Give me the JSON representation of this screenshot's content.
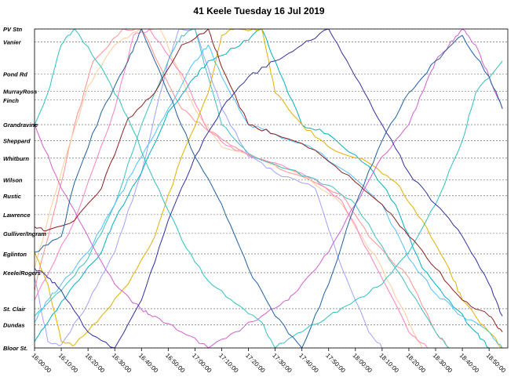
{
  "chart_data": {
    "type": "line",
    "title": "41 Keele  Tuesday 16 Jul 2019",
    "xlabel": "",
    "ylabel": "",
    "x_axis": {
      "min": "16:00:00",
      "max": "18:57:00",
      "ticks": [
        "16:00:00",
        "16:10:00",
        "16:20:00",
        "16:30:00",
        "16:40:00",
        "16:50:00",
        "17:00:00",
        "17:10:00",
        "17:20:00",
        "17:30:00",
        "17:40:00",
        "17:50:00",
        "18:00:00",
        "18:10:00",
        "18:20:00",
        "18:30:00",
        "18:40:00",
        "18:50:00"
      ]
    },
    "y_axis": {
      "stops": [
        {
          "name": "PV Stn",
          "pos": 0.0
        },
        {
          "name": "Vanier",
          "pos": 0.041
        },
        {
          "name": "Pond Rd",
          "pos": 0.141
        },
        {
          "name": "MurrayRoss",
          "pos": 0.195
        },
        {
          "name": "Finch",
          "pos": 0.223
        },
        {
          "name": "Grandravine",
          "pos": 0.3
        },
        {
          "name": "Sheppard",
          "pos": 0.35
        },
        {
          "name": "Whitburn",
          "pos": 0.405
        },
        {
          "name": "Wilson",
          "pos": 0.473
        },
        {
          "name": "Rustic",
          "pos": 0.523
        },
        {
          "name": "Lawrence",
          "pos": 0.582
        },
        {
          "name": "Gulliver/Ingram",
          "pos": 0.641
        },
        {
          "name": "Eglinton",
          "pos": 0.705
        },
        {
          "name": "Keele/Rogers",
          "pos": 0.764
        },
        {
          "name": "St. Clair",
          "pos": 0.877
        },
        {
          "name": "Dundas",
          "pos": 0.927
        },
        {
          "name": "Bloor St.",
          "pos": 1.0
        }
      ]
    },
    "grid": true,
    "legend": "none",
    "series": [
      {
        "color": "#a0a0ff",
        "points": [
          [
            "16:00",
            0.78
          ],
          [
            "16:05",
            0.98
          ],
          [
            "16:10",
            0.99
          ],
          [
            "16:20",
            0.86
          ],
          [
            "16:30",
            0.7
          ],
          [
            "16:40",
            0.45
          ],
          [
            "16:50",
            0.1
          ],
          [
            "16:54",
            0.0
          ],
          [
            "17:00",
            0.0
          ],
          [
            "17:10",
            0.25
          ],
          [
            "17:20",
            0.4
          ],
          [
            "17:30",
            0.45
          ],
          [
            "17:45",
            0.5
          ],
          [
            "17:55",
            0.75
          ],
          [
            "18:05",
            0.95
          ],
          [
            "18:10",
            1.0
          ]
        ]
      },
      {
        "color": "#ff9090",
        "points": [
          [
            "16:00",
            0.82
          ],
          [
            "16:08",
            0.55
          ],
          [
            "16:15",
            0.3
          ],
          [
            "16:22",
            0.1
          ],
          [
            "16:33",
            0.0
          ],
          [
            "16:40",
            0.0
          ],
          [
            "16:55",
            0.25
          ],
          [
            "17:05",
            0.32
          ],
          [
            "17:15",
            0.37
          ],
          [
            "17:35",
            0.45
          ],
          [
            "17:55",
            0.52
          ],
          [
            "18:05",
            0.65
          ],
          [
            "18:20",
            0.78
          ],
          [
            "18:30",
            0.95
          ],
          [
            "18:35",
            1.0
          ]
        ]
      },
      {
        "color": "#ffcc99",
        "points": [
          [
            "16:00",
            0.75
          ],
          [
            "16:10",
            0.45
          ],
          [
            "16:20",
            0.18
          ],
          [
            "16:30",
            0.05
          ],
          [
            "16:40",
            0.0
          ],
          [
            "16:47",
            0.0
          ],
          [
            "17:00",
            0.25
          ],
          [
            "17:10",
            0.37
          ],
          [
            "17:25",
            0.41
          ],
          [
            "17:40",
            0.46
          ],
          [
            "17:55",
            0.55
          ],
          [
            "18:10",
            0.75
          ],
          [
            "18:20",
            0.92
          ],
          [
            "18:25",
            1.0
          ]
        ]
      },
      {
        "color": "#ff80c0",
        "points": [
          [
            "16:00",
            0.85
          ],
          [
            "16:15",
            0.6
          ],
          [
            "16:30",
            0.25
          ],
          [
            "16:37",
            0.02
          ],
          [
            "16:43",
            0.0
          ],
          [
            "16:55",
            0.14
          ],
          [
            "17:05",
            0.32
          ],
          [
            "17:15",
            0.38
          ],
          [
            "17:30",
            0.42
          ],
          [
            "17:45",
            0.47
          ],
          [
            "17:55",
            0.54
          ],
          [
            "18:05",
            0.7
          ],
          [
            "18:20",
            0.95
          ],
          [
            "18:27",
            1.0
          ]
        ]
      },
      {
        "color": "#40c0c0",
        "points": [
          [
            "16:00",
            0.9
          ],
          [
            "16:10",
            0.82
          ],
          [
            "16:20",
            0.72
          ],
          [
            "16:30",
            0.55
          ],
          [
            "16:40",
            0.3
          ],
          [
            "16:50",
            0.1
          ],
          [
            "16:55",
            0.02
          ],
          [
            "17:00",
            0.0
          ],
          [
            "17:10",
            0.3
          ],
          [
            "17:20",
            0.39
          ],
          [
            "17:35",
            0.44
          ],
          [
            "17:50",
            0.49
          ],
          [
            "18:00",
            0.55
          ],
          [
            "18:15",
            0.75
          ],
          [
            "18:30",
            0.95
          ],
          [
            "18:35",
            1.0
          ]
        ]
      },
      {
        "color": "#00b0c0",
        "points": [
          [
            "16:00",
            0.98
          ],
          [
            "16:05",
            0.92
          ],
          [
            "16:15",
            0.8
          ],
          [
            "16:25",
            0.7
          ],
          [
            "16:30",
            0.6
          ],
          [
            "16:40",
            0.45
          ],
          [
            "16:50",
            0.26
          ],
          [
            "17:00",
            0.15
          ],
          [
            "17:05",
            0.1
          ],
          [
            "17:15",
            0.06
          ],
          [
            "17:25",
            0.0
          ],
          [
            "17:30",
            0.1
          ],
          [
            "17:40",
            0.3
          ],
          [
            "17:50",
            0.33
          ],
          [
            "18:05",
            0.43
          ],
          [
            "18:15",
            0.55
          ],
          [
            "18:25",
            0.75
          ],
          [
            "18:35",
            0.85
          ],
          [
            "18:45",
            0.95
          ],
          [
            "18:50",
            1.0
          ]
        ]
      },
      {
        "color": "#e0b000",
        "points": [
          [
            "16:00",
            0.7
          ],
          [
            "16:05",
            0.8
          ],
          [
            "16:10",
            0.98
          ],
          [
            "16:15",
            0.99
          ],
          [
            "16:25",
            0.9
          ],
          [
            "16:35",
            0.8
          ],
          [
            "16:45",
            0.65
          ],
          [
            "16:55",
            0.4
          ],
          [
            "17:05",
            0.2
          ],
          [
            "17:10",
            0.02
          ],
          [
            "17:15",
            0.0
          ],
          [
            "17:25",
            0.0
          ],
          [
            "17:30",
            0.2
          ],
          [
            "17:40",
            0.3
          ],
          [
            "17:50",
            0.37
          ],
          [
            "18:05",
            0.42
          ],
          [
            "18:15",
            0.48
          ],
          [
            "18:25",
            0.6
          ],
          [
            "18:35",
            0.75
          ],
          [
            "18:40",
            0.85
          ],
          [
            "18:50",
            0.95
          ],
          [
            "18:55",
            1.0
          ]
        ]
      },
      {
        "color": "#50c0ff",
        "points": [
          [
            "16:00",
            0.92
          ],
          [
            "16:05",
            0.85
          ],
          [
            "16:10",
            0.8
          ],
          [
            "16:20",
            0.7
          ],
          [
            "16:30",
            0.55
          ],
          [
            "16:40",
            0.4
          ],
          [
            "16:50",
            0.25
          ],
          [
            "17:00",
            0.1
          ],
          [
            "17:05",
            0.05
          ],
          [
            "17:10",
            0.15
          ],
          [
            "17:20",
            0.3
          ],
          [
            "17:30",
            0.33
          ],
          [
            "17:45",
            0.38
          ],
          [
            "18:00",
            0.47
          ],
          [
            "18:10",
            0.55
          ],
          [
            "18:20",
            0.72
          ],
          [
            "18:30",
            0.83
          ],
          [
            "18:40",
            0.9
          ],
          [
            "18:50",
            0.95
          ],
          [
            "18:55",
            1.0
          ]
        ]
      },
      {
        "color": "#d060d0",
        "points": [
          [
            "16:00",
            0.3
          ],
          [
            "16:10",
            0.5
          ],
          [
            "16:20",
            0.65
          ],
          [
            "16:30",
            0.8
          ],
          [
            "16:40",
            0.88
          ],
          [
            "16:45",
            0.9
          ],
          [
            "16:55",
            0.95
          ],
          [
            "17:05",
            1.0
          ],
          [
            "17:15",
            0.95
          ],
          [
            "17:25",
            0.9
          ],
          [
            "17:35",
            0.85
          ],
          [
            "17:40",
            0.8
          ],
          [
            "17:50",
            0.7
          ],
          [
            "18:00",
            0.55
          ],
          [
            "18:10",
            0.4
          ],
          [
            "18:20",
            0.3
          ],
          [
            "18:25",
            0.2
          ],
          [
            "18:30",
            0.1
          ],
          [
            "18:35",
            0.05
          ],
          [
            "18:40",
            0.0
          ],
          [
            "18:45",
            0.05
          ],
          [
            "18:50",
            0.15
          ],
          [
            "18:55",
            0.25
          ]
        ]
      },
      {
        "color": "#30c0c0",
        "points": [
          [
            "16:00",
            0.3
          ],
          [
            "16:05",
            0.2
          ],
          [
            "16:10",
            0.05
          ],
          [
            "16:15",
            0.0
          ],
          [
            "16:25",
            0.12
          ],
          [
            "16:35",
            0.28
          ],
          [
            "16:45",
            0.48
          ],
          [
            "16:55",
            0.66
          ],
          [
            "17:05",
            0.79
          ],
          [
            "17:15",
            0.86
          ],
          [
            "17:25",
            0.92
          ],
          [
            "17:30",
            1.0
          ],
          [
            "17:40",
            0.95
          ],
          [
            "17:50",
            0.9
          ],
          [
            "18:00",
            0.85
          ],
          [
            "18:10",
            0.8
          ],
          [
            "18:20",
            0.7
          ],
          [
            "18:30",
            0.55
          ],
          [
            "18:40",
            0.35
          ],
          [
            "18:45",
            0.2
          ],
          [
            "18:55",
            0.1
          ]
        ]
      },
      {
        "color": "#8c1f1f",
        "points": [
          [
            "16:00",
            0.62
          ],
          [
            "16:05",
            0.63
          ],
          [
            "16:15",
            0.6
          ],
          [
            "16:25",
            0.5
          ],
          [
            "16:35",
            0.28
          ],
          [
            "16:45",
            0.2
          ],
          [
            "16:55",
            0.05
          ],
          [
            "17:05",
            0.0
          ],
          [
            "17:10",
            0.12
          ],
          [
            "17:20",
            0.3
          ],
          [
            "17:30",
            0.33
          ],
          [
            "17:45",
            0.38
          ],
          [
            "18:00",
            0.48
          ],
          [
            "18:10",
            0.55
          ],
          [
            "18:20",
            0.65
          ],
          [
            "18:30",
            0.75
          ],
          [
            "18:40",
            0.85
          ],
          [
            "18:50",
            0.9
          ],
          [
            "18:55",
            0.95
          ]
        ]
      },
      {
        "color": "#3030a0",
        "points": [
          [
            "16:00",
            0.75
          ],
          [
            "16:05",
            0.78
          ],
          [
            "16:10",
            0.82
          ],
          [
            "16:20",
            0.95
          ],
          [
            "16:30",
            1.0
          ],
          [
            "16:40",
            0.85
          ],
          [
            "16:50",
            0.6
          ],
          [
            "17:00",
            0.4
          ],
          [
            "17:10",
            0.25
          ],
          [
            "17:20",
            0.15
          ],
          [
            "17:30",
            0.1
          ],
          [
            "17:40",
            0.05
          ],
          [
            "17:50",
            0.0
          ],
          [
            "18:00",
            0.15
          ],
          [
            "18:10",
            0.3
          ],
          [
            "18:20",
            0.45
          ],
          [
            "18:30",
            0.55
          ],
          [
            "18:40",
            0.65
          ],
          [
            "18:50",
            0.8
          ],
          [
            "18:55",
            0.9
          ]
        ]
      },
      {
        "color": "#2060a0",
        "points": [
          [
            "16:00",
            0.7
          ],
          [
            "16:10",
            0.65
          ],
          [
            "16:15",
            0.48
          ],
          [
            "16:25",
            0.26
          ],
          [
            "16:35",
            0.1
          ],
          [
            "16:40",
            0.0
          ],
          [
            "16:50",
            0.2
          ],
          [
            "17:00",
            0.4
          ],
          [
            "17:10",
            0.55
          ],
          [
            "17:20",
            0.75
          ],
          [
            "17:30",
            0.9
          ],
          [
            "17:40",
            1.0
          ],
          [
            "17:50",
            0.8
          ],
          [
            "18:00",
            0.55
          ],
          [
            "18:10",
            0.35
          ],
          [
            "18:20",
            0.2
          ],
          [
            "18:30",
            0.1
          ],
          [
            "18:40",
            0.02
          ],
          [
            "18:50",
            0.15
          ],
          [
            "18:55",
            0.25
          ]
        ]
      }
    ]
  }
}
